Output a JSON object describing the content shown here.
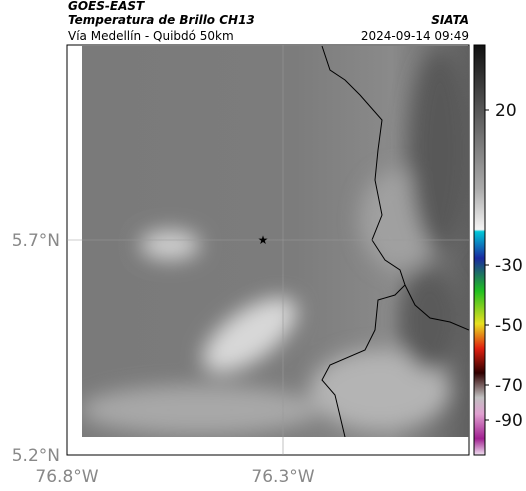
{
  "header": {
    "satellite": "GOES-EAST",
    "product": "Temperatura de Brillo CH13",
    "route": "Vía Medellín - Quibdó 50km",
    "source": "SIATA",
    "datetime": "2024-09-14 09:49"
  },
  "axes": {
    "lat_labels": [
      "5.7°N",
      "5.2°N"
    ],
    "lon_labels": [
      "76.8°W",
      "76.3°W"
    ]
  },
  "colorbar": {
    "labels": [
      "20",
      "-30",
      "-50",
      "-70",
      "-90"
    ]
  }
}
